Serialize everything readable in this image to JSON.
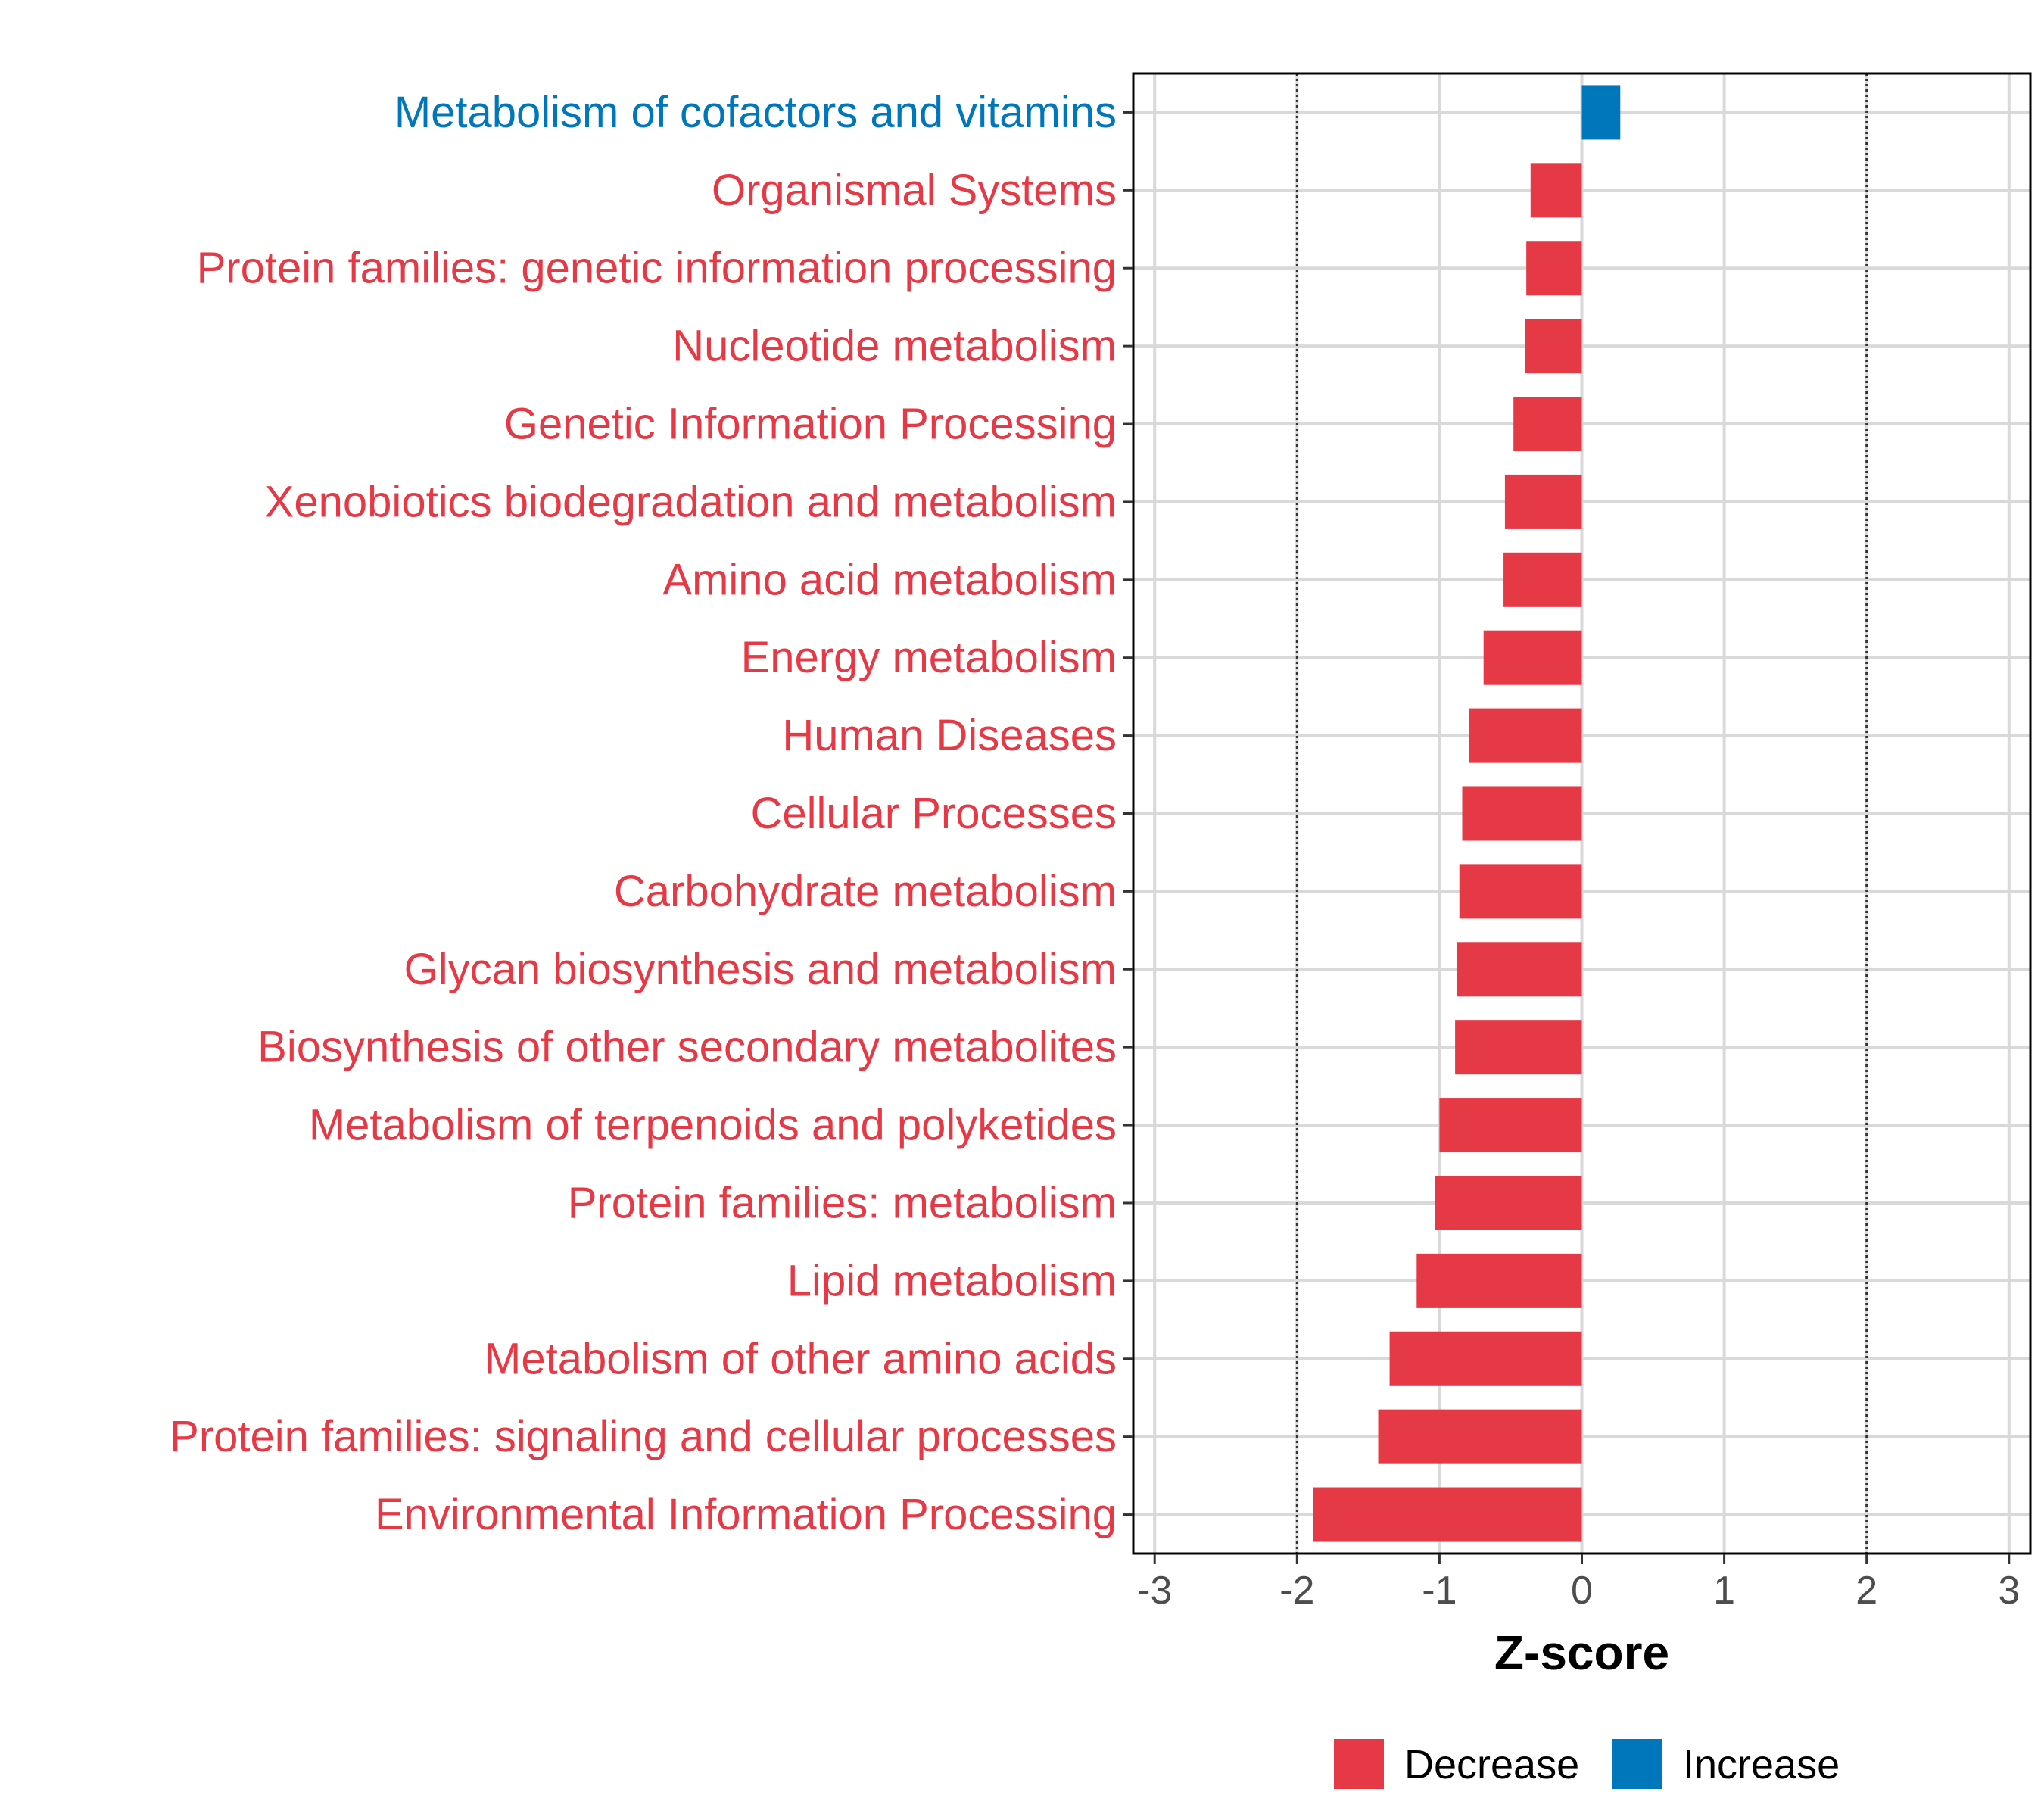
{
  "chart_data": {
    "type": "bar",
    "orientation": "horizontal",
    "title": "",
    "xlabel": "Z-score",
    "ylabel": "",
    "xlim": [
      -3.15,
      3.15
    ],
    "xticks": [
      -3,
      -2,
      -1,
      0,
      1,
      2,
      3
    ],
    "reference_lines": [
      -2,
      2
    ],
    "grid": true,
    "legend_position": "bottom",
    "categories": [
      "Metabolism of cofactors and vitamins",
      "Organismal Systems",
      "Protein families: genetic information processing",
      "Nucleotide metabolism",
      "Genetic Information Processing",
      "Xenobiotics biodegradation and metabolism",
      "Amino acid metabolism",
      "Energy metabolism",
      "Human Diseases",
      "Cellular Processes",
      "Carbohydrate metabolism",
      "Glycan biosynthesis and metabolism",
      "Biosynthesis of other secondary metabolites",
      "Metabolism of terpenoids and polyketides",
      "Protein families: metabolism",
      "Lipid metabolism",
      "Metabolism of other amino acids",
      "Protein families: signaling and cellular processes",
      "Environmental Information Processing"
    ],
    "values": [
      0.27,
      -0.36,
      -0.39,
      -0.4,
      -0.48,
      -0.54,
      -0.55,
      -0.69,
      -0.79,
      -0.84,
      -0.86,
      -0.88,
      -0.89,
      -1.0,
      -1.03,
      -1.16,
      -1.35,
      -1.43,
      -1.89
    ],
    "legend": [
      {
        "name": "Decrease",
        "color": "#E63946"
      },
      {
        "name": "Increase",
        "color": "#0077BB"
      }
    ]
  },
  "colors": {
    "decrease": "#E63946",
    "increase": "#0077BB",
    "grid": "#D9D9D9",
    "axis": "#000000"
  }
}
